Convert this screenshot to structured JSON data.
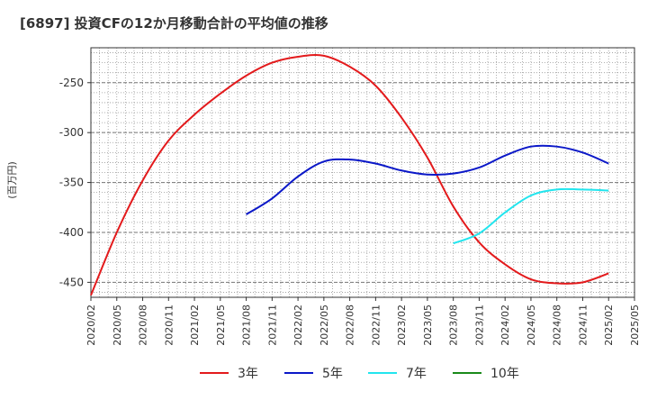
{
  "chart_data": {
    "type": "line",
    "title": "[6897]  投資CFの12か月移動合計の平均値の推移",
    "ylabel": "(百万円)",
    "xlabel": "",
    "ylim": [
      -465,
      -215
    ],
    "yticks": [
      -450,
      -400,
      -350,
      -300,
      -250
    ],
    "xticks": [
      "2020/02",
      "2020/05",
      "2020/08",
      "2020/11",
      "2021/02",
      "2021/05",
      "2021/08",
      "2021/11",
      "2022/02",
      "2022/05",
      "2022/08",
      "2022/11",
      "2023/02",
      "2023/05",
      "2023/08",
      "2023/11",
      "2024/02",
      "2024/05",
      "2024/08",
      "2024/11",
      "2025/02",
      "2025/05"
    ],
    "grid": true,
    "legend_position": "bottom",
    "series": [
      {
        "name": "3年",
        "color": "#e31a1c",
        "points": [
          [
            "2020/02",
            -463
          ],
          [
            "2020/05",
            -400
          ],
          [
            "2020/08",
            -348
          ],
          [
            "2020/11",
            -308
          ],
          [
            "2021/02",
            -282
          ],
          [
            "2021/05",
            -261
          ],
          [
            "2021/08",
            -243
          ],
          [
            "2021/11",
            -230
          ],
          [
            "2022/02",
            -224
          ],
          [
            "2022/05",
            -223
          ],
          [
            "2022/08",
            -234
          ],
          [
            "2022/11",
            -253
          ],
          [
            "2023/02",
            -285
          ],
          [
            "2023/05",
            -325
          ],
          [
            "2023/08",
            -374
          ],
          [
            "2023/11",
            -410
          ],
          [
            "2024/02",
            -432
          ],
          [
            "2024/05",
            -447
          ],
          [
            "2024/08",
            -451
          ],
          [
            "2024/11",
            -450
          ],
          [
            "2025/02",
            -441
          ]
        ]
      },
      {
        "name": "5年",
        "color": "#0b18c8",
        "points": [
          [
            "2021/08",
            -382
          ],
          [
            "2021/11",
            -366
          ],
          [
            "2022/02",
            -344
          ],
          [
            "2022/05",
            -329
          ],
          [
            "2022/08",
            -327
          ],
          [
            "2022/11",
            -331
          ],
          [
            "2023/02",
            -338
          ],
          [
            "2023/05",
            -342
          ],
          [
            "2023/08",
            -341
          ],
          [
            "2023/11",
            -335
          ],
          [
            "2024/02",
            -323
          ],
          [
            "2024/05",
            -314
          ],
          [
            "2024/08",
            -314
          ],
          [
            "2024/11",
            -320
          ],
          [
            "2025/02",
            -331
          ]
        ]
      },
      {
        "name": "7年",
        "color": "#22e5ee",
        "points": [
          [
            "2023/08",
            -411
          ],
          [
            "2023/11",
            -401
          ],
          [
            "2024/02",
            -380
          ],
          [
            "2024/05",
            -363
          ],
          [
            "2024/08",
            -357
          ],
          [
            "2024/11",
            -357
          ],
          [
            "2025/02",
            -358
          ]
        ]
      },
      {
        "name": "10年",
        "color": "#1a8a1a",
        "points": []
      }
    ]
  }
}
